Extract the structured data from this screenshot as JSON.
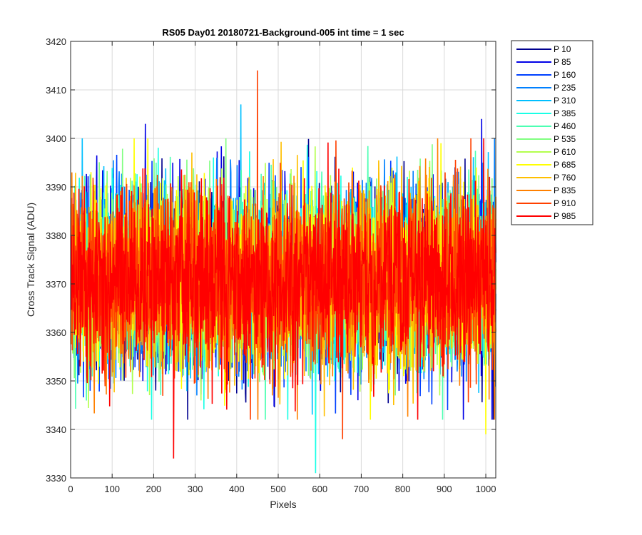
{
  "chart_data": {
    "type": "line",
    "title": "RS05 Day01 20180721-Background-005 int time = 1 sec",
    "xlabel": "Pixels",
    "ylabel": "Cross Track Signal (ADU)",
    "xlim": [
      0,
      1024
    ],
    "ylim": [
      3330,
      3420
    ],
    "xticks": [
      0,
      100,
      200,
      300,
      400,
      500,
      600,
      700,
      800,
      900,
      1000
    ],
    "yticks": [
      3330,
      3340,
      3350,
      3360,
      3370,
      3380,
      3390,
      3400,
      3410,
      3420
    ],
    "grid": true,
    "legend_position": "outside-top-right",
    "n_pixels": 1024,
    "noise_mean": 3371,
    "noise_std": 9,
    "series": [
      {
        "name": "P 10",
        "color": "#00008f"
      },
      {
        "name": "P 85",
        "color": "#0000e6"
      },
      {
        "name": "P 160",
        "color": "#0040ff"
      },
      {
        "name": "P 235",
        "color": "#0080ff"
      },
      {
        "name": "P 310",
        "color": "#00bfff"
      },
      {
        "name": "P 385",
        "color": "#19ffe6"
      },
      {
        "name": "P 460",
        "color": "#4dffb3"
      },
      {
        "name": "P 535",
        "color": "#80ff80"
      },
      {
        "name": "P 610",
        "color": "#b3ff4d"
      },
      {
        "name": "P 685",
        "color": "#ffff00"
      },
      {
        "name": "P 760",
        "color": "#ffbf00"
      },
      {
        "name": "P 835",
        "color": "#ff8000"
      },
      {
        "name": "P 910",
        "color": "#ff4000"
      },
      {
        "name": "P 985",
        "color": "#ff0000"
      }
    ],
    "notable_values": [
      {
        "series": "P 910",
        "x": 450,
        "y": 3414
      },
      {
        "series": "P 310",
        "x": 410,
        "y": 3407
      },
      {
        "series": "P 385",
        "x": 590,
        "y": 3331
      },
      {
        "series": "P 985",
        "x": 248,
        "y": 3334
      },
      {
        "series": "P 910",
        "x": 655,
        "y": 3338
      },
      {
        "series": "P 85",
        "x": 180,
        "y": 3403
      },
      {
        "series": "P 85",
        "x": 990,
        "y": 3404
      },
      {
        "series": "P 685",
        "x": 1000,
        "y": 3339
      }
    ]
  }
}
